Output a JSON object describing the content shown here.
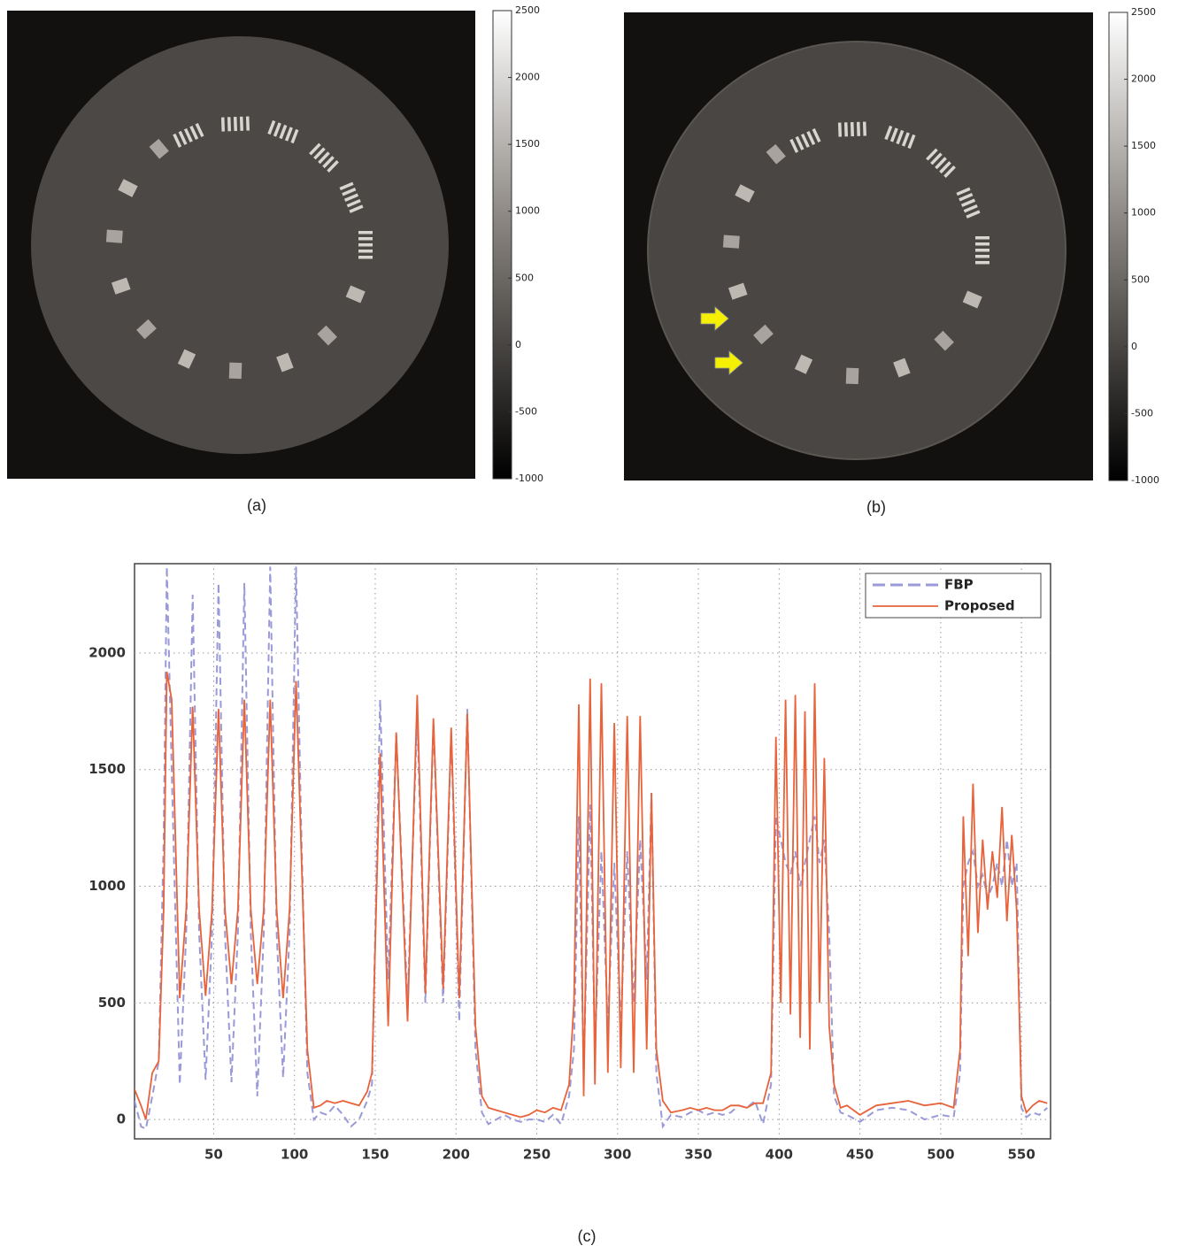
{
  "panels": [
    {
      "label": "(a)",
      "colorbar": {
        "ylim": [
          -1000,
          2500
        ],
        "yticks": [
          2500,
          2000,
          1500,
          1000,
          500,
          0,
          -500,
          -1000
        ]
      }
    },
    {
      "label": "(b)",
      "colorbar": {
        "ylim": [
          -1000,
          2500
        ],
        "yticks": [
          2500,
          2000,
          1500,
          1000,
          500,
          0,
          -500,
          -1000
        ]
      }
    },
    {
      "label": "(c)"
    }
  ],
  "chart_data": {
    "type": "line",
    "grid": true,
    "legend": "upper right",
    "xlim": [
      1,
      568
    ],
    "ylim": [
      -83,
      2383
    ],
    "xticks": [
      50,
      100,
      150,
      200,
      250,
      300,
      350,
      400,
      450,
      500,
      550
    ],
    "yticks": [
      0,
      500,
      1000,
      1500,
      2000
    ],
    "x": [
      1,
      5,
      8,
      12,
      16,
      19,
      21,
      24,
      29,
      33,
      37,
      41,
      45,
      49,
      53,
      57,
      61,
      65,
      69,
      73,
      77,
      81,
      85,
      89,
      93,
      97,
      101,
      104,
      108,
      112,
      116,
      120,
      125,
      130,
      135,
      140,
      145,
      148,
      153,
      158,
      163,
      170,
      176,
      181,
      186,
      192,
      197,
      202,
      207,
      212,
      216,
      220,
      225,
      230,
      235,
      240,
      245,
      250,
      255,
      260,
      265,
      270,
      273,
      276,
      279,
      283,
      286,
      290,
      294,
      298,
      302,
      306,
      310,
      314,
      318,
      321,
      324,
      328,
      333,
      340,
      345,
      350,
      355,
      360,
      365,
      370,
      375,
      380,
      385,
      390,
      395,
      398,
      401,
      404,
      407,
      410,
      413,
      416,
      419,
      422,
      425,
      428,
      431,
      434,
      438,
      442,
      450,
      460,
      470,
      480,
      490,
      500,
      508,
      512,
      514,
      517,
      520,
      523,
      526,
      529,
      532,
      535,
      538,
      541,
      544,
      547,
      550,
      553,
      557,
      561,
      566
    ],
    "series": [
      {
        "name": "FBP",
        "color": "#9a9ad8",
        "dash": true,
        "values": [
          80,
          -30,
          -40,
          100,
          250,
          1200,
          2370,
          1500,
          150,
          800,
          2250,
          800,
          170,
          800,
          2300,
          800,
          160,
          800,
          2300,
          800,
          100,
          800,
          2370,
          800,
          180,
          800,
          2370,
          1300,
          200,
          0,
          30,
          20,
          60,
          20,
          -30,
          0,
          80,
          150,
          1800,
          600,
          1650,
          500,
          1730,
          500,
          1700,
          500,
          1660,
          420,
          1760,
          300,
          30,
          -20,
          0,
          20,
          0,
          -10,
          0,
          0,
          -10,
          20,
          -20,
          100,
          300,
          1300,
          200,
          1350,
          300,
          1150,
          400,
          1100,
          400,
          1150,
          500,
          1200,
          600,
          1400,
          200,
          -30,
          20,
          10,
          30,
          40,
          20,
          30,
          20,
          30,
          60,
          50,
          80,
          -20,
          150,
          1300,
          1200,
          1100,
          1050,
          1150,
          1000,
          1100,
          1200,
          1300,
          1100,
          1200,
          800,
          100,
          30,
          20,
          -10,
          40,
          50,
          40,
          0,
          20,
          10,
          200,
          1000,
          1100,
          1150,
          1000,
          1050,
          950,
          1000,
          1100,
          1000,
          1200,
          1000,
          1100,
          50,
          10,
          30,
          20,
          50
        ]
      },
      {
        "name": "Proposed",
        "color": "#e8623a",
        "dash": false,
        "values": [
          130,
          60,
          0,
          200,
          250,
          900,
          1920,
          1800,
          520,
          900,
          1770,
          900,
          530,
          900,
          1760,
          900,
          580,
          900,
          1800,
          900,
          580,
          900,
          1800,
          900,
          520,
          900,
          1880,
          1200,
          300,
          50,
          60,
          80,
          70,
          80,
          70,
          60,
          120,
          200,
          1570,
          400,
          1660,
          420,
          1820,
          540,
          1720,
          560,
          1680,
          520,
          1740,
          400,
          100,
          50,
          40,
          30,
          20,
          10,
          20,
          40,
          30,
          50,
          40,
          150,
          500,
          1780,
          100,
          1890,
          150,
          1870,
          200,
          1700,
          220,
          1730,
          200,
          1730,
          300,
          1400,
          300,
          80,
          30,
          40,
          50,
          40,
          50,
          40,
          40,
          60,
          60,
          50,
          70,
          70,
          200,
          1640,
          500,
          1800,
          450,
          1820,
          350,
          1750,
          300,
          1870,
          500,
          1550,
          400,
          150,
          50,
          60,
          20,
          60,
          70,
          80,
          60,
          70,
          50,
          300,
          1300,
          700,
          1440,
          800,
          1200,
          900,
          1150,
          950,
          1340,
          850,
          1220,
          900,
          100,
          30,
          60,
          80,
          70
        ]
      }
    ]
  }
}
